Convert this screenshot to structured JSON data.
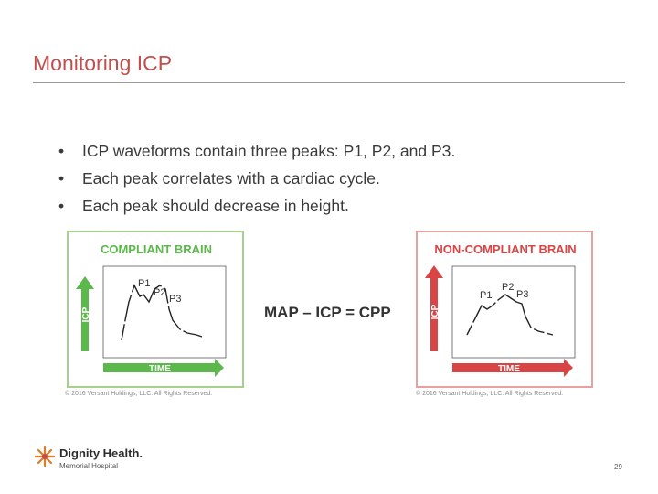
{
  "slide": {
    "title": "Monitoring ICP",
    "bullets": [
      "ICP waveforms contain three peaks: P1, P2, and P3.",
      "Each peak correlates with a cardiac cycle.",
      "Each peak should decrease in height."
    ],
    "bullet_glyph": "•",
    "formula": "MAP – ICP = CPP",
    "page_number": "29"
  },
  "left_panel": {
    "heading": "COMPLIANT BRAIN",
    "y_axis_label": "ICP",
    "x_axis_label": "TIME",
    "peaks": [
      "P1",
      "P2",
      "P3"
    ],
    "copyright": "© 2016 Versant Holdings, LLC. All Rights Reserved.",
    "accent_color": "#5bb84a",
    "border_color": "#a8d08d"
  },
  "right_panel": {
    "heading": "NON-COMPLIANT BRAIN",
    "y_axis_label": "ICP",
    "x_axis_label": "TIME",
    "peaks": [
      "P1",
      "P2",
      "P3"
    ],
    "copyright": "© 2016 Versant Holdings, LLC. All Rights Reserved.",
    "accent_color": "#d94545",
    "border_color": "#e8a0a0"
  },
  "footer": {
    "brand": "Dignity Health.",
    "subtitle": "Memorial Hospital",
    "logo_icon": "dignity-health-flower-icon",
    "brand_color": "#e07b28"
  }
}
